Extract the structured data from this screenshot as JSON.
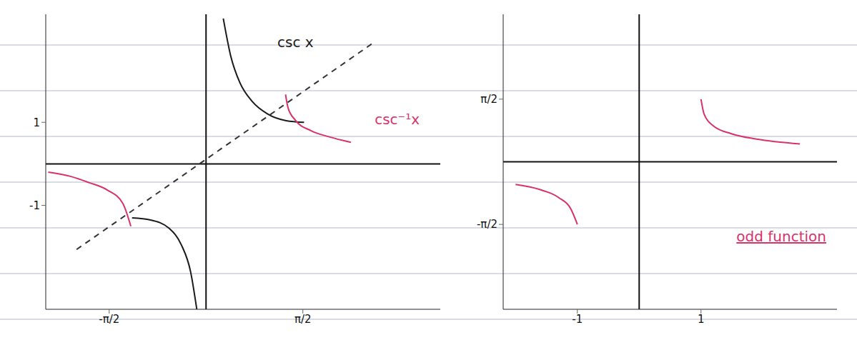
{
  "chart_data": [
    {
      "type": "line",
      "xlim": [
        -2.6,
        3.8
      ],
      "ylim": [
        -3.5,
        3.6
      ],
      "xticks": [
        {
          "value": -1.5708,
          "label": "-π/2"
        },
        {
          "value": 1.5708,
          "label": "π/2"
        }
      ],
      "yticks": [
        -1,
        1
      ],
      "series": [
        {
          "color": "#1a1a1a",
          "x": [
            0.28,
            0.4,
            0.55,
            0.75,
            1.0,
            1.3,
            1.59
          ],
          "values": [
            3.5,
            2.6,
            1.95,
            1.5,
            1.2,
            1.04,
            1.0
          ]
        },
        {
          "color": "#1a1a1a",
          "x": [
            -1.2,
            -0.9,
            -0.6,
            -0.4,
            -0.25,
            -0.15
          ],
          "values": [
            -1.3,
            -1.35,
            -1.55,
            -1.95,
            -2.6,
            -3.5
          ]
        },
        {
          "color": "#d6336c",
          "x": [
            1.29,
            1.33,
            1.45,
            1.7,
            2.0,
            2.35
          ],
          "values": [
            1.67,
            1.35,
            1.05,
            0.8,
            0.65,
            0.52
          ]
        },
        {
          "color": "#d6336c",
          "x": [
            -2.56,
            -2.2,
            -1.9,
            -1.6,
            -1.35,
            -1.22
          ],
          "values": [
            -0.2,
            -0.3,
            -0.45,
            -0.63,
            -0.95,
            -1.5
          ]
        },
        {
          "color": "#333333",
          "line_style": "dashed",
          "x": [
            -2.1,
            2.7
          ],
          "values": [
            -2.06,
            2.9
          ]
        }
      ],
      "annotations": [
        {
          "text": "csc x",
          "x": 1.45,
          "y": 2.9,
          "color": "#1a1a1a"
        },
        {
          "text": "csc⁻¹x",
          "x": 3.1,
          "y": 1.05,
          "color": "#d6336c"
        }
      ]
    },
    {
      "type": "line",
      "xlim": [
        -2.2,
        3.2
      ],
      "ylim": [
        -3.7,
        3.7
      ],
      "xticks": [
        -1,
        1
      ],
      "yticks": [
        {
          "value": -1.5708,
          "label": "-π/2"
        },
        {
          "value": 1.5708,
          "label": "π/2"
        }
      ],
      "series": [
        {
          "color": "#d6336c",
          "x": [
            1.0,
            1.05,
            1.2,
            1.5,
            1.9,
            2.6
          ],
          "values": [
            1.57,
            1.2,
            0.9,
            0.7,
            0.57,
            0.45
          ]
        },
        {
          "color": "#d6336c",
          "x": [
            -2.0,
            -1.6,
            -1.3,
            -1.1,
            -1.0
          ],
          "values": [
            -0.57,
            -0.7,
            -0.9,
            -1.2,
            -1.57
          ]
        }
      ],
      "annotations": [
        {
          "text": "odd function",
          "x": 2.3,
          "y": -1.9,
          "color": "#d6336c"
        }
      ]
    }
  ]
}
